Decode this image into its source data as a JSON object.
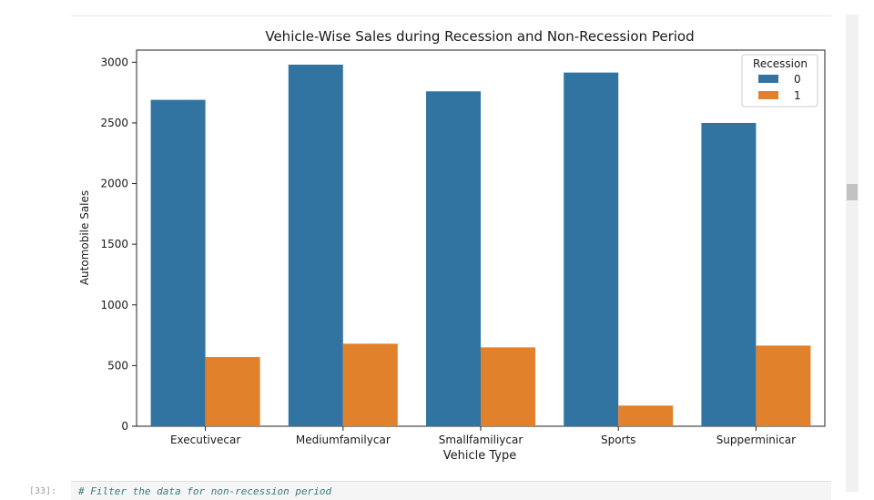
{
  "notebook": {
    "next_cell_prompt": "[33]:",
    "next_cell_code": "# Filter the data for non-recession period"
  },
  "chart_data": {
    "type": "bar",
    "title": "Vehicle-Wise Sales during Recession and Non-Recession Period",
    "xlabel": "Vehicle Type",
    "ylabel": "Automobile Sales",
    "categories": [
      "Executivecar",
      "Mediumfamilycar",
      "Smallfamiliycar",
      "Sports",
      "Supperminicar"
    ],
    "ylim": [
      0,
      3100
    ],
    "yticks": [
      0,
      500,
      1000,
      1500,
      2000,
      2500,
      3000
    ],
    "grid": false,
    "legend": {
      "title": "Recession",
      "placement": "top-right"
    },
    "series": [
      {
        "name": "0",
        "color": "#3274a1",
        "values": [
          2690,
          2980,
          2760,
          2915,
          2500
        ]
      },
      {
        "name": "1",
        "color": "#e1812c",
        "values": [
          570,
          680,
          650,
          170,
          665
        ]
      }
    ]
  }
}
